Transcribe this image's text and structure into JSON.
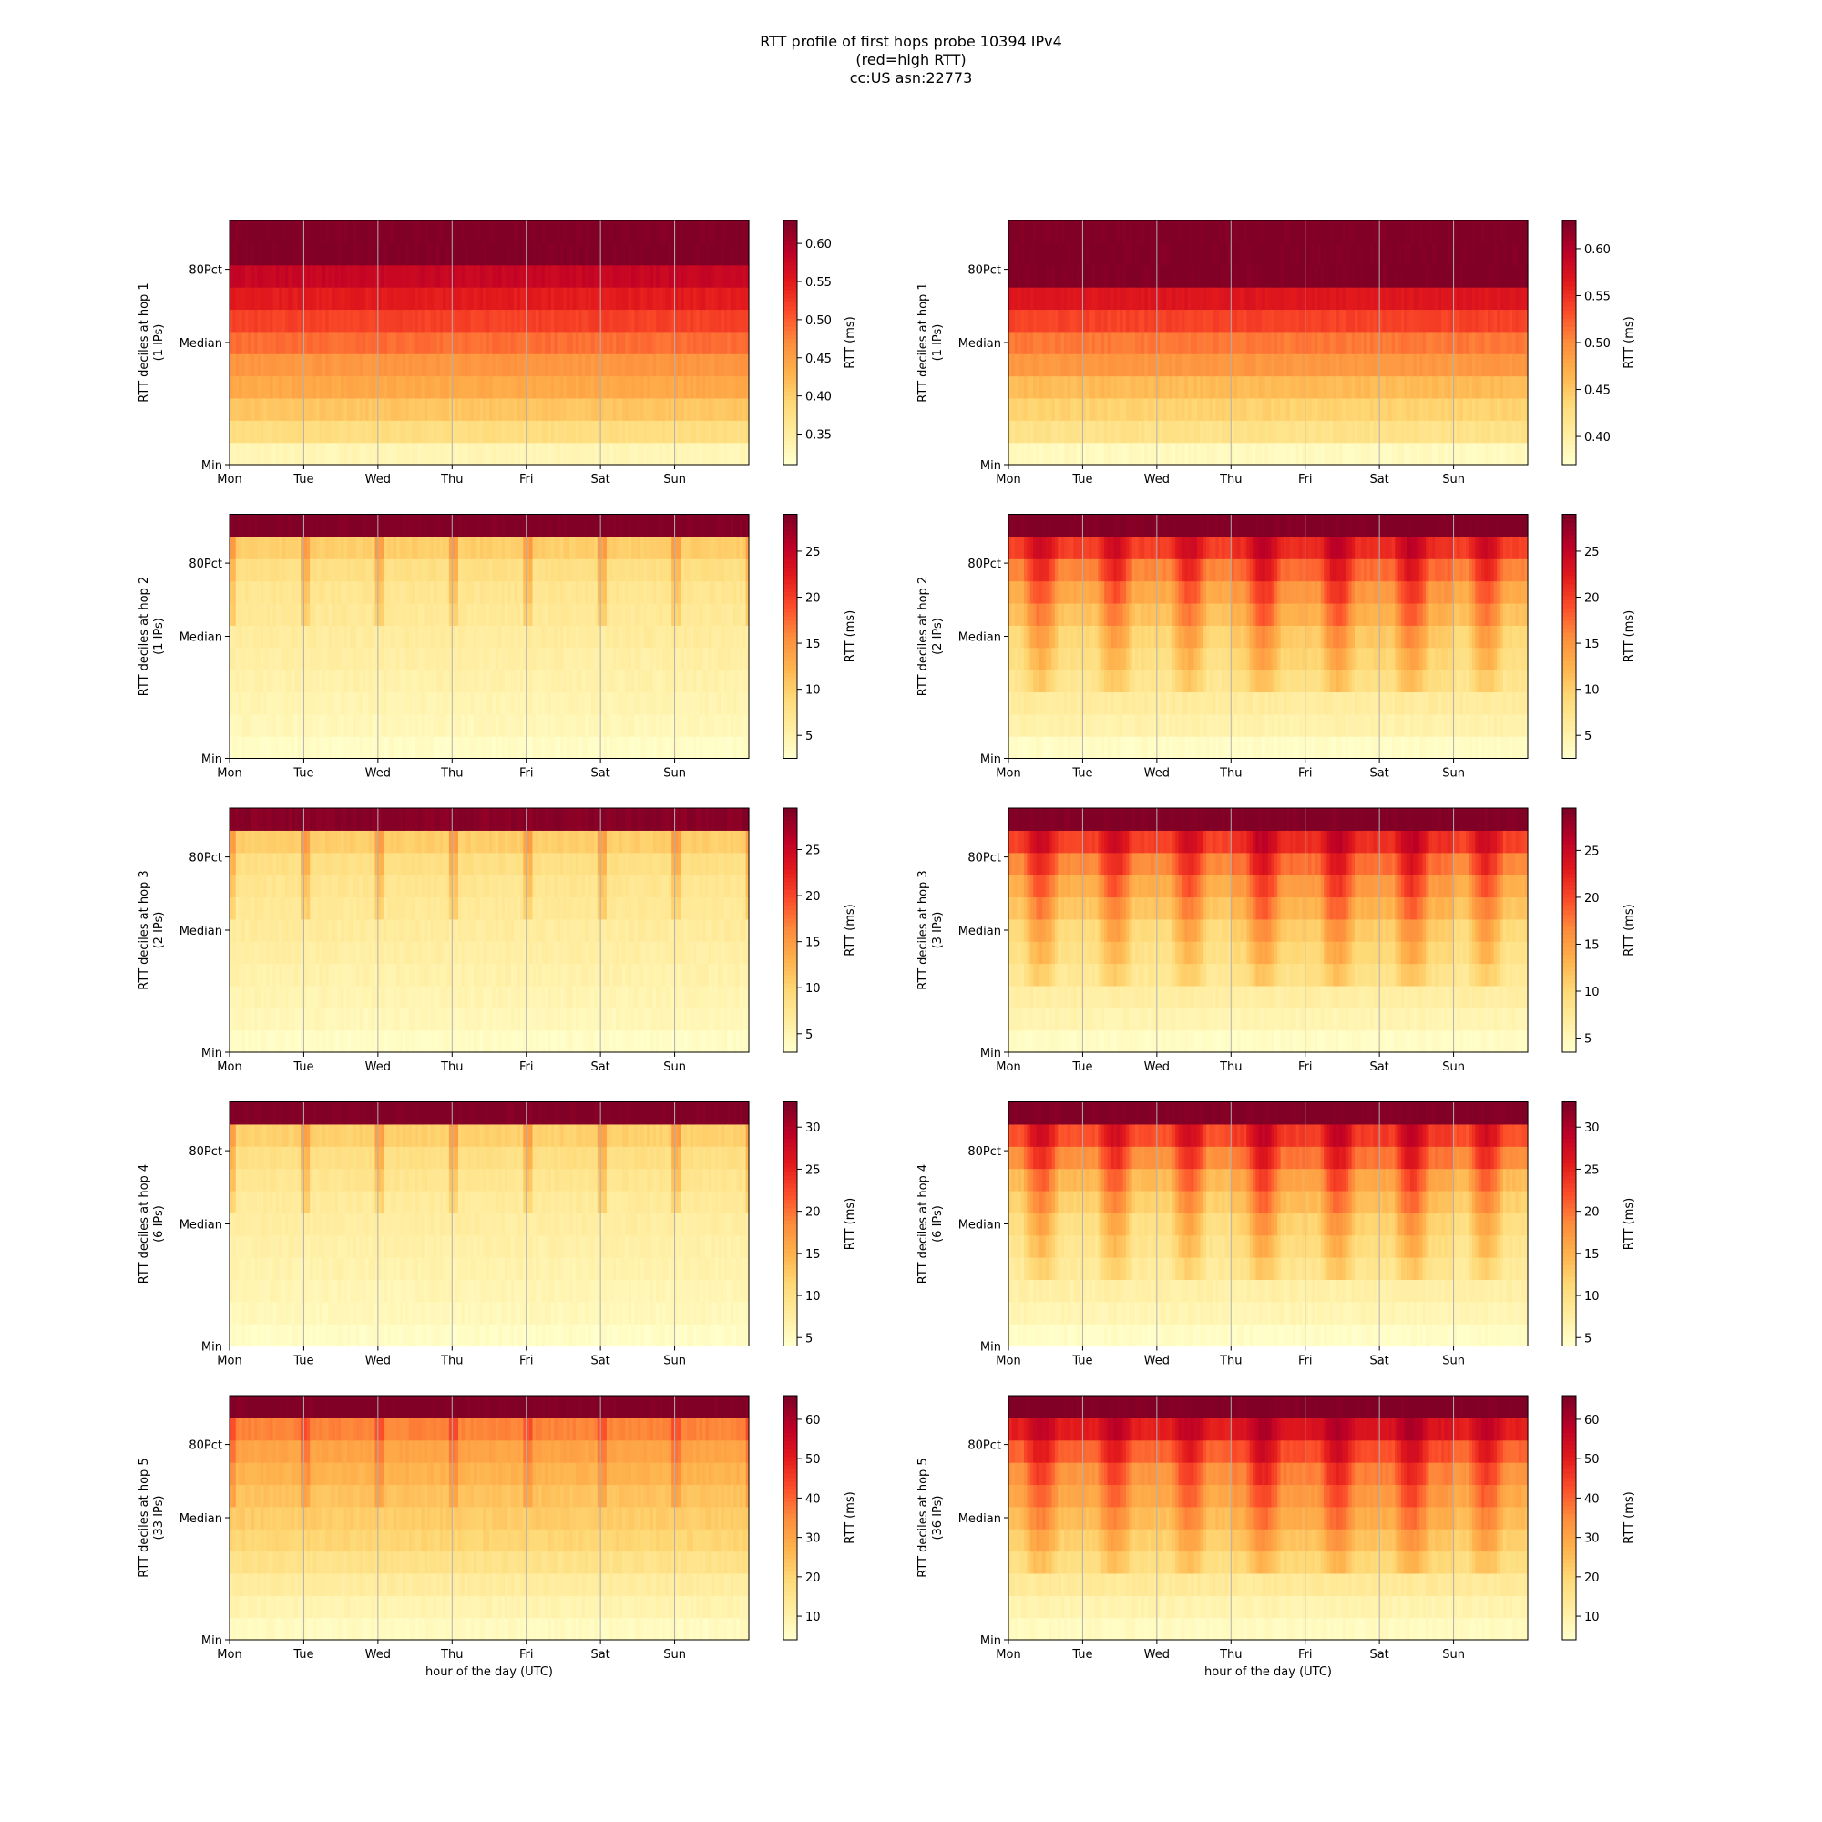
{
  "title_lines": [
    "RTT profile of first hops probe 10394 IPv4",
    "(red=high RTT)",
    "cc:US asn:22773"
  ],
  "chart_data": [
    {
      "type": "heatmap",
      "column": "left",
      "row": 1,
      "ylabel": "RTT deciles at hop 1",
      "ylabel_sub": "(1 IPs)",
      "yticks": [
        "Min",
        "Median",
        "80Pct"
      ],
      "xticks": [
        "Mon",
        "Tue",
        "Wed",
        "Thu",
        "Fri",
        "Sat",
        "Sun"
      ],
      "xlabel": "",
      "colorbar_label": "RTT (ms)",
      "colorbar_ticks": [
        0.35,
        0.4,
        0.45,
        0.5,
        0.55,
        0.6
      ],
      "colorbar_tick_labels": [
        "0.35",
        "0.40",
        "0.45",
        "0.50",
        "0.55",
        "0.60"
      ],
      "vmin": 0.31,
      "vmax": 0.63,
      "pattern": "flat",
      "decile_levels": [
        0.33,
        0.38,
        0.41,
        0.44,
        0.46,
        0.49,
        0.52,
        0.55,
        0.58,
        0.63,
        0.63
      ]
    },
    {
      "type": "heatmap",
      "column": "right",
      "row": 1,
      "ylabel": "RTT deciles at hop 1",
      "ylabel_sub": "(1 IPs)",
      "yticks": [
        "Min",
        "Median",
        "80Pct"
      ],
      "xticks": [
        "Mon",
        "Tue",
        "Wed",
        "Thu",
        "Fri",
        "Sat",
        "Sun"
      ],
      "xlabel": "",
      "colorbar_label": "RTT (ms)",
      "colorbar_ticks": [
        0.4,
        0.45,
        0.5,
        0.55,
        0.6
      ],
      "colorbar_tick_labels": [
        "0.40",
        "0.45",
        "0.50",
        "0.55",
        "0.60"
      ],
      "vmin": 0.37,
      "vmax": 0.63,
      "pattern": "flat",
      "decile_levels": [
        0.38,
        0.42,
        0.44,
        0.46,
        0.49,
        0.51,
        0.54,
        0.57,
        0.63,
        0.63,
        0.63
      ]
    },
    {
      "type": "heatmap",
      "column": "left",
      "row": 2,
      "ylabel": "RTT deciles at hop 2",
      "ylabel_sub": "(1 IPs)",
      "yticks": [
        "Min",
        "Median",
        "80Pct"
      ],
      "xticks": [
        "Mon",
        "Tue",
        "Wed",
        "Thu",
        "Fri",
        "Sat",
        "Sun"
      ],
      "xlabel": "",
      "colorbar_label": "RTT (ms)",
      "colorbar_ticks": [
        5,
        10,
        15,
        20,
        25
      ],
      "colorbar_tick_labels": [
        "5",
        "10",
        "15",
        "20",
        "25"
      ],
      "vmin": 2.5,
      "vmax": 29,
      "pattern": "spiky",
      "decile_levels": [
        3,
        4,
        4.5,
        5,
        5.5,
        6,
        6.5,
        7,
        8,
        10,
        29
      ]
    },
    {
      "type": "heatmap",
      "column": "right",
      "row": 2,
      "ylabel": "RTT deciles at hop 2",
      "ylabel_sub": "(2 IPs)",
      "yticks": [
        "Min",
        "Median",
        "80Pct"
      ],
      "xticks": [
        "Mon",
        "Tue",
        "Wed",
        "Thu",
        "Fri",
        "Sat",
        "Sun"
      ],
      "xlabel": "",
      "colorbar_label": "RTT (ms)",
      "colorbar_ticks": [
        5,
        10,
        15,
        20,
        25
      ],
      "colorbar_tick_labels": [
        "5",
        "10",
        "15",
        "20",
        "25"
      ],
      "vmin": 2.5,
      "vmax": 29,
      "pattern": "diurnal",
      "decile_levels": [
        3,
        5,
        6,
        7,
        8,
        9,
        11,
        13,
        16,
        20,
        29
      ]
    },
    {
      "type": "heatmap",
      "column": "left",
      "row": 3,
      "ylabel": "RTT deciles at hop 3",
      "ylabel_sub": "(2 IPs)",
      "yticks": [
        "Min",
        "Median",
        "80Pct"
      ],
      "xticks": [
        "Mon",
        "Tue",
        "Wed",
        "Thu",
        "Fri",
        "Sat",
        "Sun"
      ],
      "xlabel": "",
      "colorbar_label": "RTT (ms)",
      "colorbar_ticks": [
        5,
        10,
        15,
        20,
        25
      ],
      "colorbar_tick_labels": [
        "5",
        "10",
        "15",
        "20",
        "25"
      ],
      "vmin": 3,
      "vmax": 29.5,
      "pattern": "spiky",
      "decile_levels": [
        3.5,
        4.5,
        5,
        5.5,
        6,
        6.5,
        7,
        7.5,
        8.5,
        10.5,
        29
      ]
    },
    {
      "type": "heatmap",
      "column": "right",
      "row": 3,
      "ylabel": "RTT deciles at hop 3",
      "ylabel_sub": "(3 IPs)",
      "yticks": [
        "Min",
        "Median",
        "80Pct"
      ],
      "xticks": [
        "Mon",
        "Tue",
        "Wed",
        "Thu",
        "Fri",
        "Sat",
        "Sun"
      ],
      "xlabel": "",
      "colorbar_label": "RTT (ms)",
      "colorbar_ticks": [
        5,
        10,
        15,
        20,
        25
      ],
      "colorbar_tick_labels": [
        "5",
        "10",
        "15",
        "20",
        "25"
      ],
      "vmin": 3.5,
      "vmax": 29.5,
      "pattern": "diurnal",
      "decile_levels": [
        4,
        5.5,
        6.5,
        7.5,
        8.5,
        9.5,
        11.5,
        13.5,
        16.5,
        20.5,
        29.5
      ]
    },
    {
      "type": "heatmap",
      "column": "left",
      "row": 4,
      "ylabel": "RTT deciles at hop 4",
      "ylabel_sub": "(6 IPs)",
      "yticks": [
        "Min",
        "Median",
        "80Pct"
      ],
      "xticks": [
        "Mon",
        "Tue",
        "Wed",
        "Thu",
        "Fri",
        "Sat",
        "Sun"
      ],
      "xlabel": "",
      "colorbar_label": "RTT (ms)",
      "colorbar_ticks": [
        5,
        10,
        15,
        20,
        25,
        30
      ],
      "colorbar_tick_labels": [
        "5",
        "10",
        "15",
        "20",
        "25",
        "30"
      ],
      "vmin": 4,
      "vmax": 33,
      "pattern": "spiky",
      "decile_levels": [
        4.5,
        5.5,
        6,
        6.5,
        7,
        7.5,
        8,
        9,
        10,
        12,
        33
      ]
    },
    {
      "type": "heatmap",
      "column": "right",
      "row": 4,
      "ylabel": "RTT deciles at hop 4",
      "ylabel_sub": "(6 IPs)",
      "yticks": [
        "Min",
        "Median",
        "80Pct"
      ],
      "xticks": [
        "Mon",
        "Tue",
        "Wed",
        "Thu",
        "Fri",
        "Sat",
        "Sun"
      ],
      "xlabel": "",
      "colorbar_label": "RTT (ms)",
      "colorbar_ticks": [
        5,
        10,
        15,
        20,
        25,
        30
      ],
      "colorbar_tick_labels": [
        "5",
        "10",
        "15",
        "20",
        "25",
        "30"
      ],
      "vmin": 4,
      "vmax": 33,
      "pattern": "diurnal",
      "decile_levels": [
        4.5,
        6,
        7,
        8,
        9,
        10,
        12,
        14,
        18,
        22,
        33
      ]
    },
    {
      "type": "heatmap",
      "column": "left",
      "row": 5,
      "ylabel": "RTT deciles at hop 5",
      "ylabel_sub": "(33 IPs)",
      "yticks": [
        "Min",
        "Median",
        "80Pct"
      ],
      "xticks": [
        "Mon",
        "Tue",
        "Wed",
        "Thu",
        "Fri",
        "Sat",
        "Sun"
      ],
      "xlabel": "hour of the day (UTC)",
      "colorbar_label": "RTT (ms)",
      "colorbar_ticks": [
        10,
        20,
        30,
        40,
        50,
        60
      ],
      "colorbar_tick_labels": [
        "10",
        "20",
        "30",
        "40",
        "50",
        "60"
      ],
      "vmin": 4,
      "vmax": 66,
      "pattern": "spiky",
      "decile_levels": [
        6,
        9,
        12,
        16,
        20,
        22,
        24,
        27,
        30,
        36,
        66
      ]
    },
    {
      "type": "heatmap",
      "column": "right",
      "row": 5,
      "ylabel": "RTT deciles at hop 5",
      "ylabel_sub": "(36 IPs)",
      "yticks": [
        "Min",
        "Median",
        "80Pct"
      ],
      "xticks": [
        "Mon",
        "Tue",
        "Wed",
        "Thu",
        "Fri",
        "Sat",
        "Sun"
      ],
      "xlabel": "hour of the day (UTC)",
      "colorbar_label": "RTT (ms)",
      "colorbar_ticks": [
        10,
        20,
        30,
        40,
        50,
        60
      ],
      "colorbar_tick_labels": [
        "10",
        "20",
        "30",
        "40",
        "50",
        "60"
      ],
      "vmin": 4,
      "vmax": 66,
      "pattern": "diurnal",
      "decile_levels": [
        6,
        9,
        13,
        17,
        21,
        25,
        29,
        33,
        40,
        50,
        66
      ]
    }
  ],
  "colors": {
    "colormap": [
      "#ffffcc",
      "#ffeda0",
      "#fed976",
      "#feb24c",
      "#fd8d3c",
      "#fc4e2a",
      "#e31a1c",
      "#bd0026",
      "#800026"
    ],
    "grid": "#b0b0b0",
    "axis": "#000000"
  }
}
